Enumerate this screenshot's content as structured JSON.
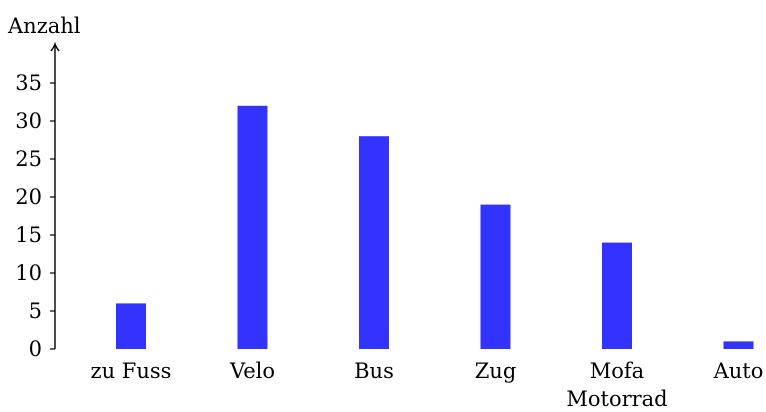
{
  "chart_data": {
    "type": "bar",
    "ylabel": "Anzahl",
    "categories": [
      [
        "zu Fuss"
      ],
      [
        "Velo"
      ],
      [
        "Bus"
      ],
      [
        "Zug"
      ],
      [
        "Mofa",
        "Motorrad"
      ],
      [
        "Auto"
      ]
    ],
    "values": [
      6,
      32,
      28,
      19,
      14,
      1
    ],
    "ylim": [
      0,
      38
    ],
    "yticks": [
      0,
      5,
      10,
      15,
      20,
      25,
      30,
      35
    ],
    "bar_color": "#3333ff",
    "grid": false,
    "legend": "none"
  }
}
